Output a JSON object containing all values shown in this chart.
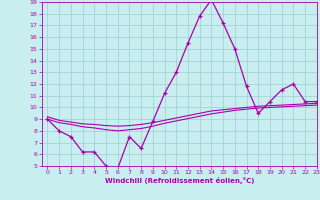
{
  "xlabel": "Windchill (Refroidissement éolien,°C)",
  "bg_color": "#c8eef0",
  "line_color": "#aa00aa",
  "grid_color": "#9ecece",
  "hours": [
    0,
    1,
    2,
    3,
    4,
    5,
    6,
    7,
    8,
    9,
    10,
    11,
    12,
    13,
    14,
    15,
    16,
    17,
    18,
    19,
    20,
    21,
    22,
    23
  ],
  "windchill": [
    9.0,
    8.0,
    7.5,
    6.2,
    6.2,
    5.0,
    4.8,
    7.5,
    6.5,
    8.8,
    11.2,
    13.0,
    15.5,
    17.8,
    19.2,
    17.2,
    15.0,
    11.8,
    9.5,
    10.5,
    11.5,
    12.0,
    10.5,
    10.5
  ],
  "trend1": [
    9.2,
    8.9,
    8.75,
    8.6,
    8.55,
    8.45,
    8.4,
    8.45,
    8.55,
    8.7,
    8.9,
    9.1,
    9.3,
    9.5,
    9.7,
    9.8,
    9.9,
    10.0,
    10.1,
    10.15,
    10.2,
    10.25,
    10.3,
    10.35
  ],
  "trend2": [
    9.0,
    8.7,
    8.55,
    8.35,
    8.25,
    8.1,
    8.0,
    8.1,
    8.2,
    8.4,
    8.65,
    8.85,
    9.05,
    9.25,
    9.45,
    9.6,
    9.75,
    9.85,
    9.95,
    10.0,
    10.05,
    10.1,
    10.15,
    10.2
  ],
  "ylim": [
    5,
    19
  ],
  "xlim": [
    -0.5,
    23
  ],
  "yticks": [
    5,
    6,
    7,
    8,
    9,
    10,
    11,
    12,
    13,
    14,
    15,
    16,
    17,
    18,
    19
  ],
  "xticks": [
    0,
    1,
    2,
    3,
    4,
    5,
    6,
    7,
    8,
    9,
    10,
    11,
    12,
    13,
    14,
    15,
    16,
    17,
    18,
    19,
    20,
    21,
    22,
    23
  ]
}
